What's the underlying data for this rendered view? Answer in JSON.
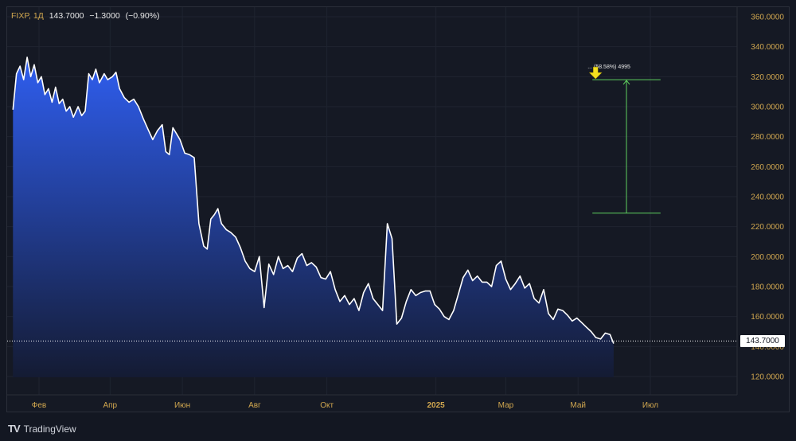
{
  "legend": {
    "symbol": "FIXP, 1Д",
    "last": "143.7000",
    "change": "−1.3000",
    "change_pct": "(−0.90%)"
  },
  "brand": {
    "logo": "TV",
    "name": "TradingView"
  },
  "price_tag": "143.7000",
  "measure_label": "... (58.58%) 4995",
  "colors": {
    "line": "#ffffff",
    "fill_top": "#2f5ef0",
    "fill_bottom": "#141b33",
    "grid": "#1f2430",
    "axis_text": "#d1a74f",
    "measure": "#5fd05f",
    "arrow": "#f4e01f"
  },
  "chart_data": {
    "type": "area",
    "title": "",
    "xlabel": "",
    "ylabel": "",
    "ylim": [
      110,
      365
    ],
    "y_ticks": [
      120,
      140,
      160,
      180,
      200,
      220,
      240,
      260,
      280,
      300,
      320,
      340,
      360
    ],
    "y_tick_labels": [
      "120.0000",
      "140.0000",
      "160.0000",
      "180.0000",
      "200.0000",
      "220.0000",
      "240.0000",
      "260.0000",
      "280.0000",
      "300.0000",
      "320.0000",
      "340.0000",
      "360.0000"
    ],
    "x_ticks": [
      {
        "label": "Фев",
        "date": "2024-02-01",
        "bold": false
      },
      {
        "label": "Апр",
        "date": "2024-04-01",
        "bold": false
      },
      {
        "label": "Июн",
        "date": "2024-06-01",
        "bold": false
      },
      {
        "label": "Авг",
        "date": "2024-08-01",
        "bold": false
      },
      {
        "label": "Окт",
        "date": "2024-10-01",
        "bold": false
      },
      {
        "label": "2025",
        "date": "2025-01-01",
        "bold": true
      },
      {
        "label": "Мар",
        "date": "2025-03-01",
        "bold": false
      },
      {
        "label": "Май",
        "date": "2025-05-01",
        "bold": false
      },
      {
        "label": "Июл",
        "date": "2025-07-01",
        "bold": false
      }
    ],
    "x_range": [
      "2024-01-10",
      "2025-08-01"
    ],
    "last_price_line": 143.7,
    "grid": true,
    "series": [
      {
        "x": [
          "2024-01-10",
          "2024-01-13",
          "2024-01-16",
          "2024-01-19",
          "2024-01-22",
          "2024-01-25",
          "2024-01-28",
          "2024-01-31",
          "2024-02-03",
          "2024-02-06",
          "2024-02-09",
          "2024-02-12",
          "2024-02-15",
          "2024-02-18",
          "2024-02-21",
          "2024-02-24",
          "2024-02-27",
          "2024-03-01",
          "2024-03-05",
          "2024-03-08",
          "2024-03-11",
          "2024-03-14",
          "2024-03-17",
          "2024-03-20",
          "2024-03-23",
          "2024-03-27",
          "2024-03-30",
          "2024-04-03",
          "2024-04-06",
          "2024-04-09",
          "2024-04-13",
          "2024-04-17",
          "2024-04-21",
          "2024-04-25",
          "2024-04-29",
          "2024-05-03",
          "2024-05-07",
          "2024-05-11",
          "2024-05-15",
          "2024-05-18",
          "2024-05-21",
          "2024-05-24",
          "2024-05-27",
          "2024-05-30",
          "2024-06-03",
          "2024-06-07",
          "2024-06-11",
          "2024-06-15",
          "2024-06-19",
          "2024-06-22",
          "2024-06-25",
          "2024-06-28",
          "2024-07-01",
          "2024-07-04",
          "2024-07-08",
          "2024-07-12",
          "2024-07-16",
          "2024-07-20",
          "2024-07-24",
          "2024-07-28",
          "2024-08-01",
          "2024-08-05",
          "2024-08-09",
          "2024-08-13",
          "2024-08-17",
          "2024-08-21",
          "2024-08-25",
          "2024-08-29",
          "2024-09-02",
          "2024-09-06",
          "2024-09-10",
          "2024-09-14",
          "2024-09-18",
          "2024-09-22",
          "2024-09-26",
          "2024-09-30",
          "2024-10-04",
          "2024-10-08",
          "2024-10-12",
          "2024-10-16",
          "2024-10-20",
          "2024-10-24",
          "2024-10-28",
          "2024-11-01",
          "2024-11-05",
          "2024-11-09",
          "2024-11-13",
          "2024-11-17",
          "2024-11-21",
          "2024-11-25",
          "2024-11-29",
          "2024-12-03",
          "2024-12-07",
          "2024-12-11",
          "2024-12-15",
          "2024-12-19",
          "2024-12-23",
          "2024-12-27",
          "2024-12-31",
          "2025-01-04",
          "2025-01-08",
          "2025-01-12",
          "2025-01-16",
          "2025-01-20",
          "2025-01-24",
          "2025-01-28",
          "2025-02-01",
          "2025-02-05",
          "2025-02-09",
          "2025-02-13",
          "2025-02-17",
          "2025-02-21",
          "2025-02-25",
          "2025-03-01",
          "2025-03-05",
          "2025-03-09",
          "2025-03-13",
          "2025-03-17",
          "2025-03-21",
          "2025-03-25",
          "2025-03-29",
          "2025-04-02",
          "2025-04-06",
          "2025-04-10",
          "2025-04-14",
          "2025-04-18",
          "2025-04-22",
          "2025-04-26",
          "2025-04-30",
          "2025-05-04",
          "2025-05-08",
          "2025-05-12",
          "2025-05-16",
          "2025-05-20",
          "2025-05-24",
          "2025-05-28",
          "2025-05-31"
        ],
        "values": [
          298,
          322,
          327,
          318,
          333,
          320,
          328,
          316,
          320,
          308,
          312,
          303,
          313,
          302,
          305,
          297,
          300,
          293,
          300,
          294,
          297,
          322,
          318,
          325,
          316,
          322,
          318,
          320,
          323,
          312,
          306,
          303,
          305,
          300,
          292,
          285,
          278,
          284,
          288,
          270,
          268,
          286,
          282,
          278,
          269,
          268,
          266,
          222,
          207,
          205,
          225,
          228,
          232,
          222,
          218,
          216,
          213,
          206,
          197,
          192,
          190,
          200,
          166,
          195,
          188,
          200,
          192,
          194,
          190,
          199,
          202,
          194,
          196,
          193,
          186,
          185,
          190,
          178,
          170,
          174,
          168,
          172,
          164,
          176,
          182,
          172,
          168,
          164,
          222,
          212,
          155,
          159,
          170,
          178,
          174,
          176,
          177,
          177,
          168,
          165,
          160,
          158,
          164,
          175,
          186,
          191,
          184,
          187,
          183,
          183,
          180,
          194,
          197,
          185,
          178,
          182,
          187,
          179,
          182,
          172,
          169,
          178,
          162,
          158,
          165,
          164,
          161,
          157,
          159,
          156,
          153,
          150,
          146,
          145,
          149,
          148,
          142
        ]
      }
    ],
    "annotation": {
      "type": "price-range",
      "from_date": "2025-05-01",
      "to_date": "2025-07-15",
      "from_value": 229,
      "to_value": 318
    }
  }
}
